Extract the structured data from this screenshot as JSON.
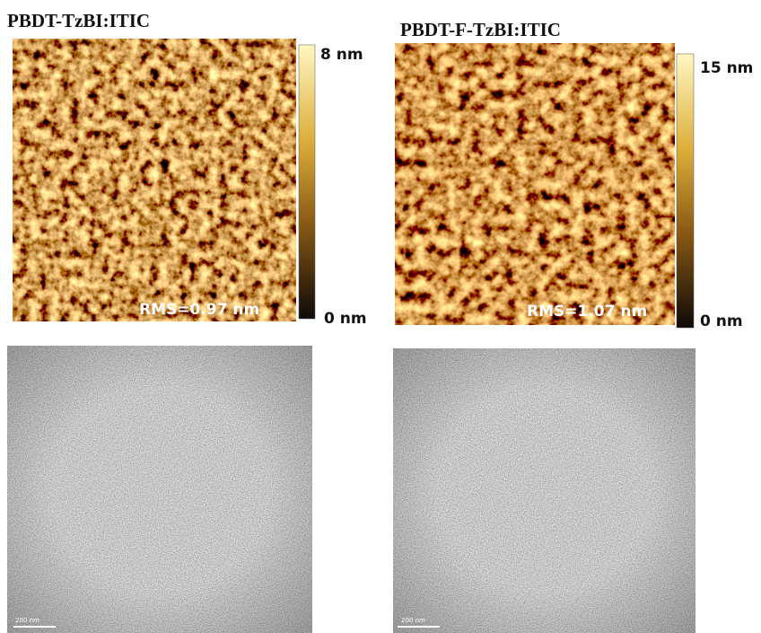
{
  "afm_panels": [
    {
      "title": "PBDT-TzBI:ITIC",
      "colorbar_max": "8 nm",
      "colorbar_min": "0 nm",
      "rms": "RMS=0.97 nm"
    },
    {
      "title": "PBDT-F-TzBI:ITIC",
      "colorbar_max": "15 nm",
      "colorbar_min": "0 nm",
      "rms": "RMS=1.07 nm"
    }
  ],
  "tem_panels": [
    {
      "scale_bar": "200 nm"
    },
    {
      "scale_bar": "200 nm"
    }
  ]
}
